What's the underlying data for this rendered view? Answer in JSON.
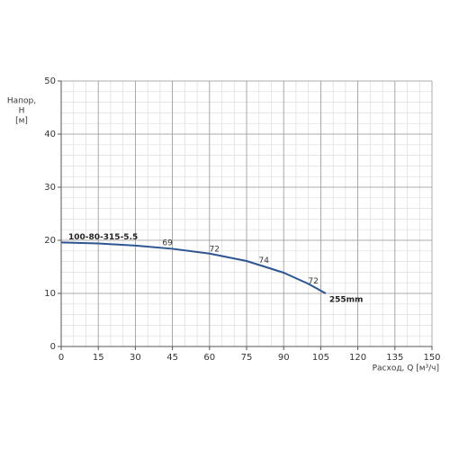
{
  "chart_data": {
    "type": "line",
    "x_label": "Расход, Q [м³/ч]",
    "y_label": [
      "Напор,",
      "H",
      "[м]"
    ],
    "xlim": [
      0,
      150
    ],
    "xticks": [
      0,
      15,
      30,
      45,
      60,
      75,
      90,
      105,
      120,
      135,
      150
    ],
    "ylim": [
      0,
      50
    ],
    "yticks": [
      0,
      10,
      20,
      30,
      40,
      50
    ],
    "grid": true,
    "minor_step": {
      "x": 5,
      "y": 2
    },
    "series": [
      {
        "name": "100-80-315-5.5",
        "end_label": "255mm",
        "color": "#2c5592",
        "x": [
          0,
          15,
          30,
          45,
          60,
          75,
          90,
          100,
          107
        ],
        "values": [
          19.6,
          19.4,
          19.0,
          18.4,
          17.5,
          16.1,
          13.9,
          11.8,
          10.0
        ]
      }
    ],
    "efficiency_labels": [
      {
        "x": 43,
        "y": 18.5,
        "value": 69
      },
      {
        "x": 62,
        "y": 17.3,
        "value": 72
      },
      {
        "x": 82,
        "y": 15.2,
        "value": 74
      },
      {
        "x": 102,
        "y": 11.3,
        "value": 72
      }
    ]
  }
}
